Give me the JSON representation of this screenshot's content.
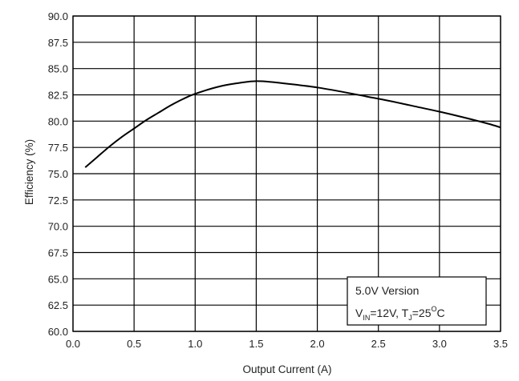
{
  "chart_data": {
    "type": "line",
    "title": "",
    "xlabel": "Output Current (A)",
    "ylabel": "Efficiency (%)",
    "xlim": [
      0.0,
      3.5
    ],
    "ylim": [
      60.0,
      90.0
    ],
    "grid": true,
    "x_ticks": [
      "0.0",
      "0.5",
      "1.0",
      "1.5",
      "2.0",
      "2.5",
      "3.0",
      "3.5"
    ],
    "y_ticks": [
      "90.0",
      "87.5",
      "85.0",
      "82.5",
      "80.0",
      "77.5",
      "75.0",
      "72.5",
      "70.0",
      "67.5",
      "65.0",
      "62.5",
      "60.0"
    ],
    "series": [
      {
        "x": [
          0.1,
          0.2,
          0.3,
          0.4,
          0.5,
          0.6,
          0.7,
          0.8,
          0.9,
          1.0,
          1.2,
          1.4,
          1.5,
          1.6,
          1.8,
          2.0,
          2.2,
          2.4,
          2.6,
          2.8,
          3.0,
          3.2,
          3.4,
          3.5
        ],
        "y": [
          75.6,
          76.6,
          77.6,
          78.5,
          79.3,
          80.1,
          80.8,
          81.5,
          82.1,
          82.6,
          83.3,
          83.7,
          83.8,
          83.75,
          83.5,
          83.2,
          82.8,
          82.35,
          81.9,
          81.4,
          80.9,
          80.35,
          79.75,
          79.4
        ],
        "color": "#000000"
      }
    ],
    "annotation": {
      "line1": "5.0V Version",
      "v_main": "V",
      "v_sub": "IN",
      "v_value": "=12V, T",
      "t_sub": "J",
      "t_value": "=25",
      "deg_sup": "O",
      "unit": "C"
    }
  }
}
